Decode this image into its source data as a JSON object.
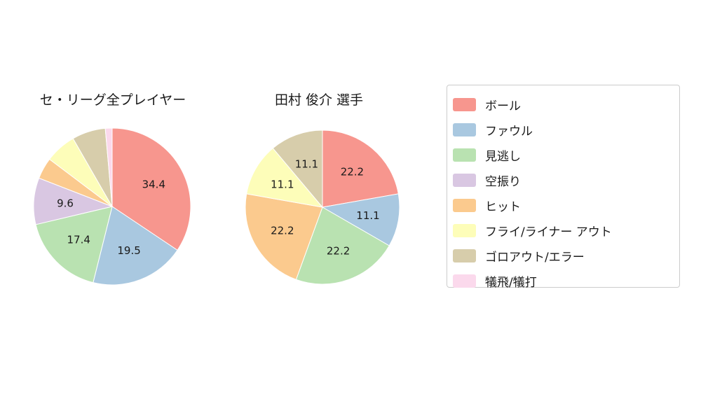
{
  "chart_data": [
    {
      "type": "pie",
      "title": "セ・リーグ全プレイヤー",
      "labels": [
        "ボール",
        "ファウル",
        "見逃し",
        "空振り",
        "ヒット",
        "フライ/ライナー アウト",
        "ゴロアウト/エラー",
        "犠飛/犠打"
      ],
      "values": [
        34.4,
        19.5,
        17.4,
        9.6,
        4.4,
        6.4,
        6.9,
        1.4
      ],
      "value_labels": [
        "34.4",
        "19.5",
        "17.4",
        "9.6",
        "",
        "",
        "",
        ""
      ],
      "colors": [
        "#f7968e",
        "#a9c8e0",
        "#b9e2b1",
        "#d9c7e2",
        "#fbca8e",
        "#fdfdb9",
        "#d7cdab",
        "#fbd9ec"
      ],
      "start_angle_deg": 0,
      "direction": "clockwise",
      "legend": false
    },
    {
      "type": "pie",
      "title": "田村 俊介 選手",
      "labels": [
        "ボール",
        "ファウル",
        "見逃し",
        "ヒット",
        "フライ/ライナー アウト",
        "ゴロアウト/エラー"
      ],
      "values": [
        22.2,
        11.1,
        22.2,
        22.2,
        11.1,
        11.1
      ],
      "value_labels": [
        "22.2",
        "11.1",
        "22.2",
        "22.2",
        "11.1",
        "11.1"
      ],
      "colors": [
        "#f7968e",
        "#a9c8e0",
        "#b9e2b1",
        "#fbca8e",
        "#fdfdb9",
        "#d7cdab"
      ],
      "start_angle_deg": 0,
      "direction": "clockwise",
      "legend": false
    }
  ],
  "legend": {
    "position": "right",
    "items": [
      {
        "label": "ボール",
        "color": "#f7968e"
      },
      {
        "label": "ファウル",
        "color": "#a9c8e0"
      },
      {
        "label": "見逃し",
        "color": "#b9e2b1"
      },
      {
        "label": "空振り",
        "color": "#d9c7e2"
      },
      {
        "label": "ヒット",
        "color": "#fbca8e"
      },
      {
        "label": "フライ/ライナー アウト",
        "color": "#fdfdb9"
      },
      {
        "label": "ゴロアウト/エラー",
        "color": "#d7cdab"
      },
      {
        "label": "犠飛/犠打",
        "color": "#fbd9ec"
      }
    ]
  },
  "style": {
    "background": "#ffffff",
    "text_color": "#1a1a1a",
    "legend_border": "#cccccc",
    "slice_edge": "#ffffff"
  }
}
